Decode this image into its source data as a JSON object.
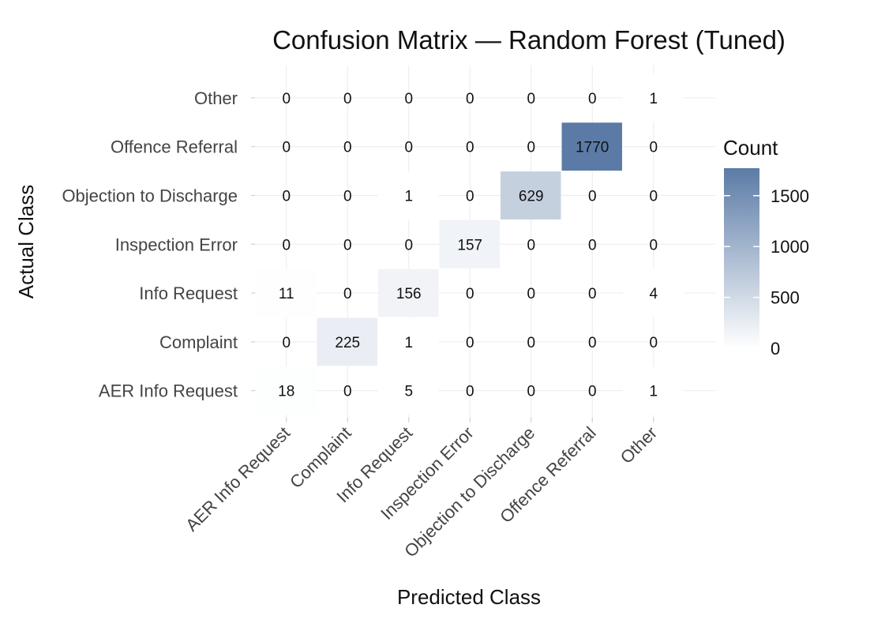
{
  "chart_data": {
    "type": "heatmap",
    "title": "Confusion Matrix — Random Forest (Tuned)",
    "xlabel": "Predicted Class",
    "ylabel": "Actual Class",
    "x_categories": [
      "AER Info Request",
      "Complaint",
      "Info Request",
      "Inspection Error",
      "Objection to Discharge",
      "Offence Referral",
      "Other"
    ],
    "y_categories": [
      "AER Info Request",
      "Complaint",
      "Info Request",
      "Inspection Error",
      "Objection to Discharge",
      "Offence Referral",
      "Other"
    ],
    "values": [
      [
        18,
        0,
        5,
        0,
        0,
        0,
        1
      ],
      [
        0,
        225,
        1,
        0,
        0,
        0,
        0
      ],
      [
        11,
        0,
        156,
        0,
        0,
        0,
        4
      ],
      [
        0,
        0,
        0,
        157,
        0,
        0,
        0
      ],
      [
        0,
        0,
        1,
        0,
        629,
        0,
        0
      ],
      [
        0,
        0,
        0,
        0,
        0,
        1770,
        0
      ],
      [
        0,
        0,
        0,
        0,
        0,
        0,
        1
      ]
    ],
    "legend": {
      "title": "Count",
      "ticks": [
        0,
        500,
        1000,
        1500
      ],
      "range": [
        0,
        1770
      ],
      "low_color": "#ffffff",
      "high_color": "#5b7ba6",
      "placement": "right"
    },
    "grid": true
  }
}
